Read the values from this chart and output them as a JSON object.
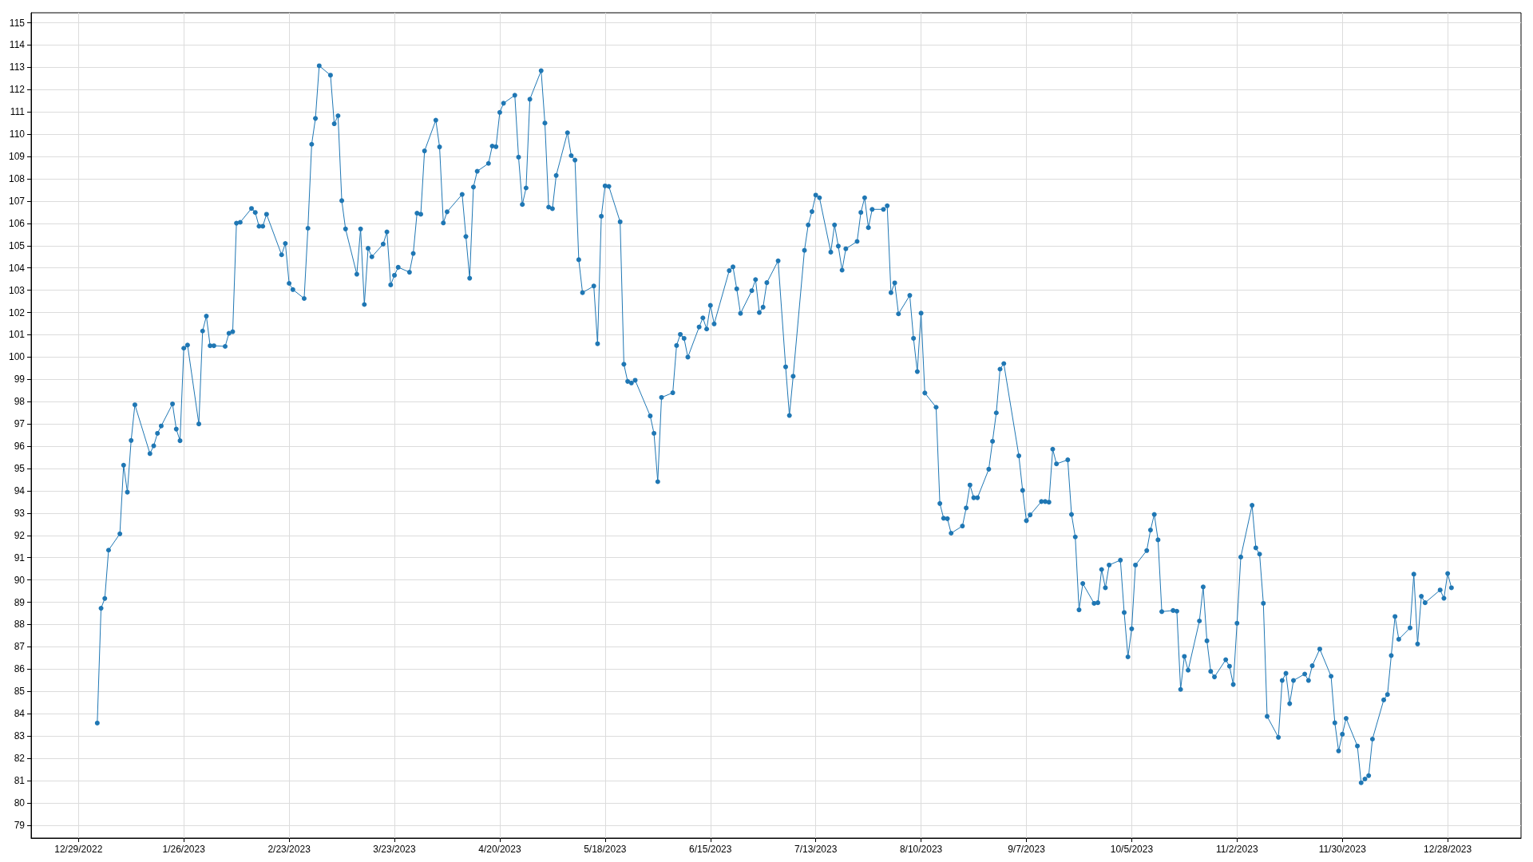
{
  "chart_data": {
    "type": "line",
    "color": "#1f77b4",
    "marker": "circle",
    "line_style": "solid",
    "grid": true,
    "x": [
      "2023-01-03",
      "2023-01-04",
      "2023-01-05",
      "2023-01-06",
      "2023-01-09",
      "2023-01-10",
      "2023-01-11",
      "2023-01-12",
      "2023-01-13",
      "2023-01-17",
      "2023-01-18",
      "2023-01-19",
      "2023-01-20",
      "2023-01-23",
      "2023-01-24",
      "2023-01-25",
      "2023-01-26",
      "2023-01-27",
      "2023-01-30",
      "2023-01-31",
      "2023-02-01",
      "2023-02-02",
      "2023-02-03",
      "2023-02-06",
      "2023-02-07",
      "2023-02-08",
      "2023-02-09",
      "2023-02-10",
      "2023-02-13",
      "2023-02-14",
      "2023-02-15",
      "2023-02-16",
      "2023-02-17",
      "2023-02-21",
      "2023-02-22",
      "2023-02-23",
      "2023-02-24",
      "2023-02-27",
      "2023-02-28",
      "2023-03-01",
      "2023-03-02",
      "2023-03-03",
      "2023-03-06",
      "2023-03-07",
      "2023-03-08",
      "2023-03-09",
      "2023-03-10",
      "2023-03-13",
      "2023-03-14",
      "2023-03-15",
      "2023-03-16",
      "2023-03-17",
      "2023-03-20",
      "2023-03-21",
      "2023-03-22",
      "2023-03-23",
      "2023-03-24",
      "2023-03-27",
      "2023-03-28",
      "2023-03-29",
      "2023-03-30",
      "2023-03-31",
      "2023-04-03",
      "2023-04-04",
      "2023-04-05",
      "2023-04-06",
      "2023-04-10",
      "2023-04-11",
      "2023-04-12",
      "2023-04-13",
      "2023-04-14",
      "2023-04-17",
      "2023-04-18",
      "2023-04-19",
      "2023-04-20",
      "2023-04-21",
      "2023-04-24",
      "2023-04-25",
      "2023-04-26",
      "2023-04-27",
      "2023-04-28",
      "2023-05-01",
      "2023-05-02",
      "2023-05-03",
      "2023-05-04",
      "2023-05-05",
      "2023-05-08",
      "2023-05-09",
      "2023-05-10",
      "2023-05-11",
      "2023-05-12",
      "2023-05-15",
      "2023-05-16",
      "2023-05-17",
      "2023-05-18",
      "2023-05-19",
      "2023-05-22",
      "2023-05-23",
      "2023-05-24",
      "2023-05-25",
      "2023-05-26",
      "2023-05-30",
      "2023-05-31",
      "2023-06-01",
      "2023-06-02",
      "2023-06-05",
      "2023-06-06",
      "2023-06-07",
      "2023-06-08",
      "2023-06-09",
      "2023-06-12",
      "2023-06-13",
      "2023-06-14",
      "2023-06-15",
      "2023-06-16",
      "2023-06-20",
      "2023-06-21",
      "2023-06-22",
      "2023-06-23",
      "2023-06-26",
      "2023-06-27",
      "2023-06-28",
      "2023-06-29",
      "2023-06-30",
      "2023-07-03",
      "2023-07-05",
      "2023-07-06",
      "2023-07-07",
      "2023-07-10",
      "2023-07-11",
      "2023-07-12",
      "2023-07-13",
      "2023-07-14",
      "2023-07-17",
      "2023-07-18",
      "2023-07-19",
      "2023-07-20",
      "2023-07-21",
      "2023-07-24",
      "2023-07-25",
      "2023-07-26",
      "2023-07-27",
      "2023-07-28",
      "2023-07-31",
      "2023-08-01",
      "2023-08-02",
      "2023-08-03",
      "2023-08-04",
      "2023-08-07",
      "2023-08-08",
      "2023-08-09",
      "2023-08-10",
      "2023-08-11",
      "2023-08-14",
      "2023-08-15",
      "2023-08-16",
      "2023-08-17",
      "2023-08-18",
      "2023-08-21",
      "2023-08-22",
      "2023-08-23",
      "2023-08-24",
      "2023-08-25",
      "2023-08-28",
      "2023-08-29",
      "2023-08-30",
      "2023-08-31",
      "2023-09-01",
      "2023-09-05",
      "2023-09-06",
      "2023-09-07",
      "2023-09-08",
      "2023-09-11",
      "2023-09-12",
      "2023-09-13",
      "2023-09-14",
      "2023-09-15",
      "2023-09-18",
      "2023-09-19",
      "2023-09-20",
      "2023-09-21",
      "2023-09-22",
      "2023-09-25",
      "2023-09-26",
      "2023-09-27",
      "2023-09-28",
      "2023-09-29",
      "2023-10-02",
      "2023-10-03",
      "2023-10-04",
      "2023-10-05",
      "2023-10-06",
      "2023-10-09",
      "2023-10-10",
      "2023-10-11",
      "2023-10-12",
      "2023-10-13",
      "2023-10-16",
      "2023-10-17",
      "2023-10-18",
      "2023-10-19",
      "2023-10-20",
      "2023-10-23",
      "2023-10-24",
      "2023-10-25",
      "2023-10-26",
      "2023-10-27",
      "2023-10-30",
      "2023-10-31",
      "2023-11-01",
      "2023-11-02",
      "2023-11-03",
      "2023-11-06",
      "2023-11-07",
      "2023-11-08",
      "2023-11-09",
      "2023-11-10",
      "2023-11-13",
      "2023-11-14",
      "2023-11-15",
      "2023-11-16",
      "2023-11-17",
      "2023-11-20",
      "2023-11-21",
      "2023-11-22",
      "2023-11-24",
      "2023-11-27",
      "2023-11-28",
      "2023-11-29",
      "2023-11-30",
      "2023-12-01",
      "2023-12-04",
      "2023-12-05",
      "2023-12-06",
      "2023-12-07",
      "2023-12-08",
      "2023-12-11",
      "2023-12-12",
      "2023-12-13",
      "2023-12-14",
      "2023-12-15",
      "2023-12-18",
      "2023-12-19",
      "2023-12-20",
      "2023-12-21",
      "2023-12-22",
      "2023-12-26",
      "2023-12-27",
      "2023-12-28",
      "2023-12-29"
    ],
    "values": [
      83.58,
      88.73,
      89.17,
      91.34,
      92.07,
      95.15,
      93.94,
      96.26,
      97.86,
      95.67,
      96.02,
      96.58,
      96.91,
      97.9,
      96.77,
      96.25,
      100.4,
      100.54,
      97.0,
      101.17,
      101.84,
      100.51,
      100.51,
      100.48,
      101.07,
      101.14,
      106.01,
      106.05,
      106.67,
      106.49,
      105.87,
      105.87,
      106.41,
      104.59,
      105.1,
      103.31,
      103.03,
      102.63,
      105.78,
      109.55,
      110.71,
      113.07,
      112.65,
      110.47,
      110.83,
      107.02,
      105.75,
      103.72,
      105.75,
      102.36,
      104.88,
      104.5,
      105.07,
      105.62,
      103.24,
      103.67,
      104.03,
      103.81,
      104.65,
      106.46,
      106.41,
      109.25,
      110.63,
      109.43,
      106.02,
      106.52,
      107.3,
      105.41,
      103.54,
      107.63,
      108.34,
      108.69,
      109.47,
      109.44,
      110.98,
      111.39,
      111.75,
      108.97,
      106.85,
      107.59,
      111.57,
      112.85,
      110.5,
      106.73,
      106.66,
      108.15,
      110.07,
      109.04,
      108.84,
      104.37,
      102.89,
      103.19,
      100.6,
      106.32,
      107.68,
      107.66,
      106.07,
      99.68,
      98.91,
      98.84,
      98.96,
      97.36,
      96.58,
      94.41,
      98.19,
      98.4,
      100.52,
      101.02,
      100.84,
      100.0,
      101.35,
      101.76,
      101.26,
      102.32,
      101.49,
      103.88,
      104.05,
      103.06,
      101.96,
      102.98,
      103.48,
      102.0,
      102.24,
      103.34,
      104.32,
      99.56,
      97.38,
      99.14,
      104.79,
      105.93,
      106.53,
      107.27,
      107.15,
      104.71,
      105.93,
      104.98,
      103.9,
      104.86,
      105.19,
      106.49,
      107.15,
      105.81,
      106.63,
      106.63,
      106.79,
      102.89,
      103.33,
      101.94,
      102.77,
      100.84,
      99.35,
      101.97,
      98.39,
      97.75,
      93.43,
      92.77,
      92.75,
      92.1,
      92.42,
      93.23,
      94.26,
      93.69,
      93.69,
      94.97,
      96.22,
      97.5,
      99.46,
      99.71,
      95.57,
      94.02,
      92.66,
      92.92,
      93.52,
      93.52,
      93.49,
      95.87,
      95.21,
      95.39,
      92.94,
      91.93,
      88.66,
      89.84,
      88.95,
      88.98,
      90.47,
      89.65,
      90.67,
      90.89,
      88.54,
      86.55,
      87.81,
      90.67,
      91.32,
      92.24,
      92.94,
      91.8,
      88.58,
      88.63,
      88.6,
      85.09,
      86.57,
      85.95,
      88.16,
      89.69,
      87.27,
      85.9,
      85.65,
      86.42,
      86.13,
      85.31,
      88.06,
      91.03,
      93.35,
      91.44,
      91.16,
      88.95,
      83.88,
      82.94,
      85.49,
      85.81,
      84.45,
      85.49,
      85.78,
      85.49,
      86.15,
      86.9,
      85.68,
      83.59,
      82.33,
      83.08,
      83.79,
      82.55,
      80.9,
      81.07,
      81.22,
      82.86,
      84.62,
      84.86,
      86.61,
      88.36,
      87.34,
      87.85,
      90.26,
      87.13,
      89.27,
      88.98,
      89.55,
      89.18,
      90.29,
      89.65
    ],
    "xlim": [
      "2022-12-16T10:00",
      "2024-01-16T12:00"
    ],
    "xticks": [
      {
        "value": "2022-12-29",
        "label": "12/29/2022"
      },
      {
        "value": "2023-01-26",
        "label": "1/26/2023"
      },
      {
        "value": "2023-02-23",
        "label": "2/23/2023"
      },
      {
        "value": "2023-03-23",
        "label": "3/23/2023"
      },
      {
        "value": "2023-04-20",
        "label": "4/20/2023"
      },
      {
        "value": "2023-05-18",
        "label": "5/18/2023"
      },
      {
        "value": "2023-06-15",
        "label": "6/15/2023"
      },
      {
        "value": "2023-07-13",
        "label": "7/13/2023"
      },
      {
        "value": "2023-08-10",
        "label": "8/10/2023"
      },
      {
        "value": "2023-09-07",
        "label": "9/7/2023"
      },
      {
        "value": "2023-10-05",
        "label": "10/5/2023"
      },
      {
        "value": "2023-11-02",
        "label": "11/2/2023"
      },
      {
        "value": "2023-11-30",
        "label": "11/30/2023"
      },
      {
        "value": "2023-12-28",
        "label": "12/28/2023"
      }
    ],
    "ylim": [
      78.42,
      115.45
    ],
    "yticks": [
      79,
      80,
      81,
      82,
      83,
      84,
      85,
      86,
      87,
      88,
      89,
      90,
      91,
      92,
      93,
      94,
      95,
      96,
      97,
      98,
      99,
      100,
      101,
      102,
      103,
      104,
      105,
      106,
      107,
      108,
      109,
      110,
      111,
      112,
      113,
      114,
      115
    ]
  }
}
